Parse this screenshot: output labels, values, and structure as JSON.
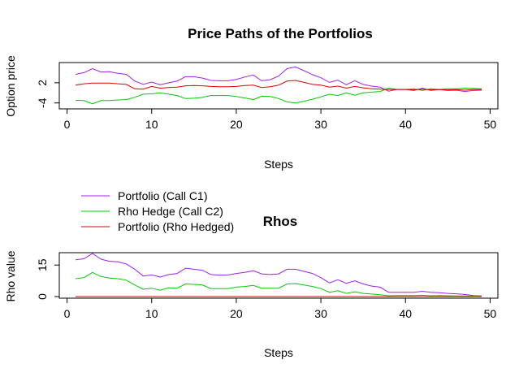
{
  "colors": {
    "portfolio": "#a020f0",
    "hedge": "#00cc00",
    "hedged": "#e00000"
  },
  "chart_data": [
    {
      "type": "line",
      "title": "Price Paths of the Portfolios",
      "xlabel": "Steps",
      "ylabel": "Option price",
      "xlim": [
        1,
        49
      ],
      "ylim": [
        -4.8,
        6.8
      ],
      "xticks": [
        "0",
        "10",
        "20",
        "30",
        "40",
        "50"
      ],
      "yticks": [
        "-4",
        "2"
      ],
      "x": [
        1,
        2,
        3,
        4,
        5,
        6,
        7,
        8,
        9,
        10,
        11,
        12,
        13,
        14,
        15,
        16,
        17,
        18,
        19,
        20,
        21,
        22,
        23,
        24,
        25,
        26,
        27,
        28,
        29,
        30,
        31,
        32,
        33,
        34,
        35,
        36,
        37,
        38,
        39,
        40,
        41,
        42,
        43,
        44,
        45,
        46,
        47,
        48,
        49
      ],
      "series": [
        {
          "name": "Portfolio (Call C1)",
          "color_key": "portfolio",
          "values": [
            4.5,
            5.0,
            6.2,
            5.2,
            5.3,
            4.8,
            4.5,
            2.5,
            1.5,
            2.2,
            1.4,
            2.0,
            2.5,
            3.8,
            3.8,
            3.4,
            2.7,
            2.6,
            2.6,
            3.0,
            3.7,
            4.3,
            2.6,
            2.9,
            4.0,
            6.2,
            6.7,
            5.6,
            4.4,
            3.5,
            2.1,
            2.8,
            1.4,
            2.6,
            1.5,
            1.0,
            0.7,
            -0.5,
            0.0,
            0.0,
            -0.3,
            0.4,
            -0.3,
            0.0,
            -0.3,
            -0.2,
            -0.6,
            -0.3,
            -0.2
          ]
        },
        {
          "name": "Rho Hedge (Call C2)",
          "color_key": "hedge",
          "values": [
            -3.2,
            -3.3,
            -4.3,
            -3.3,
            -3.3,
            -3.1,
            -3.0,
            -2.3,
            -1.4,
            -1.3,
            -1.0,
            -1.4,
            -1.8,
            -2.7,
            -2.6,
            -2.3,
            -1.8,
            -1.8,
            -1.8,
            -2.1,
            -2.5,
            -3.0,
            -2.0,
            -2.1,
            -2.7,
            -3.7,
            -4.0,
            -3.5,
            -2.9,
            -2.2,
            -1.4,
            -1.8,
            -1.0,
            -1.7,
            -1.0,
            -0.8,
            -0.6,
            0.4,
            0.0,
            0.0,
            0.2,
            -0.3,
            0.2,
            0.0,
            0.2,
            0.2,
            0.4,
            0.3,
            0.2
          ]
        },
        {
          "name": "Portfolio (Rho Hedged)",
          "color_key": "hedged",
          "values": [
            1.3,
            1.7,
            1.9,
            1.9,
            1.9,
            1.7,
            1.5,
            0.2,
            0.1,
            0.9,
            0.4,
            0.6,
            0.7,
            1.1,
            1.2,
            1.1,
            0.9,
            0.8,
            0.8,
            0.9,
            1.2,
            1.3,
            0.6,
            0.8,
            1.3,
            2.5,
            2.7,
            2.1,
            1.5,
            1.3,
            0.7,
            1.0,
            0.4,
            0.9,
            0.5,
            0.2,
            0.1,
            0.0,
            0.0,
            0.0,
            -0.1,
            0.1,
            -0.1,
            0.0,
            -0.1,
            0.0,
            -0.2,
            0.0,
            0.0
          ]
        }
      ]
    },
    {
      "type": "line",
      "title": "Rhos",
      "xlabel": "Steps",
      "ylabel": "Rho value",
      "xlim": [
        1,
        49
      ],
      "ylim": [
        0,
        20.5
      ],
      "xticks": [
        "0",
        "10",
        "20",
        "30",
        "40",
        "50"
      ],
      "yticks": [
        "0",
        "15"
      ],
      "legend_position": "top-left",
      "x": [
        1,
        2,
        3,
        4,
        5,
        6,
        7,
        8,
        9,
        10,
        11,
        12,
        13,
        14,
        15,
        16,
        17,
        18,
        19,
        20,
        21,
        22,
        23,
        24,
        25,
        26,
        27,
        28,
        29,
        30,
        31,
        32,
        33,
        34,
        35,
        36,
        37,
        38,
        39,
        40,
        41,
        42,
        43,
        44,
        45,
        46,
        47,
        48,
        49
      ],
      "series": [
        {
          "name": "Portfolio (Call C1)",
          "color_key": "portfolio",
          "values": [
            17.5,
            18.0,
            20.5,
            17.8,
            16.8,
            16.5,
            15.5,
            13.0,
            9.8,
            10.3,
            9.3,
            10.5,
            11.0,
            13.5,
            13.0,
            12.5,
            10.5,
            10.2,
            10.3,
            11.0,
            11.5,
            12.3,
            10.8,
            10.5,
            10.8,
            13.0,
            13.0,
            12.0,
            11.0,
            9.0,
            6.5,
            8.0,
            6.3,
            7.5,
            6.0,
            5.0,
            4.5,
            2.0,
            2.0,
            2.0,
            2.0,
            2.5,
            2.0,
            1.8,
            1.5,
            1.3,
            1.0,
            0.5,
            0.3
          ]
        },
        {
          "name": "Rho Hedge (Call C2)",
          "color_key": "hedge",
          "values": [
            8.5,
            9.0,
            11.5,
            9.5,
            8.8,
            8.5,
            7.8,
            5.5,
            3.5,
            4.0,
            3.0,
            4.2,
            4.0,
            6.0,
            5.8,
            5.5,
            3.8,
            3.8,
            3.8,
            4.5,
            4.8,
            5.3,
            4.0,
            4.0,
            4.0,
            6.0,
            6.2,
            5.5,
            4.8,
            3.8,
            2.0,
            2.8,
            1.5,
            2.3,
            1.5,
            1.2,
            0.9,
            0.4,
            0.5,
            0.5,
            0.5,
            0.6,
            0.4,
            0.5,
            0.4,
            0.3,
            0.3,
            0.2,
            0.1
          ]
        },
        {
          "name": "Portfolio (Rho Hedged)",
          "color_key": "hedged",
          "values": [
            0,
            0,
            0,
            0,
            0,
            0,
            0,
            0,
            0,
            0,
            0,
            0,
            0,
            0,
            0,
            0,
            0,
            0,
            0,
            0,
            0,
            0,
            0,
            0,
            0,
            0,
            0,
            0,
            0,
            0,
            0,
            0,
            0,
            0,
            0,
            0,
            0,
            0,
            0,
            0,
            0,
            0,
            0,
            0,
            0,
            0,
            0,
            0,
            0
          ]
        }
      ]
    }
  ]
}
